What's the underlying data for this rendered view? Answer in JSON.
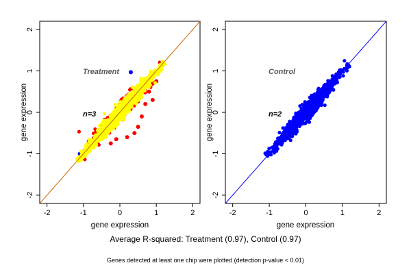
{
  "caption": "Average R-squared: Treatment (0.97), Control (0.97)",
  "footnote": "Genes detected at least one chip were plotted (detection p-value < 0.01)",
  "colors": {
    "treatment_fill": "#ffff00",
    "treatment_outlier": "#ff0000",
    "treatment_other": "#0000ff",
    "treatment_line": "#cc6600",
    "control_fill": "#0000ff",
    "control_line": "#0000ff"
  },
  "chart_data": [
    {
      "type": "scatter",
      "title": "Treatment",
      "annotation": "n=3",
      "xlabel": "gene expression",
      "ylabel": "gene expression",
      "xlim": [
        -2.2,
        2.2
      ],
      "ylim": [
        -2.2,
        2.2
      ],
      "xticks": [
        -2,
        -1,
        0,
        1,
        2
      ],
      "yticks": [
        -2,
        -1,
        0,
        1,
        2
      ],
      "grid": false,
      "reference_line": "y = x",
      "cloud": {
        "x_range": [
          -1.15,
          1.2
        ],
        "y_range": [
          -1.15,
          1.2
        ],
        "r_squared": 0.97
      },
      "series": [
        {
          "color": "#ff0000",
          "points": [
            [
              0.8,
              0.5
            ],
            [
              0.9,
              0.3
            ],
            [
              0.6,
              -0.1
            ],
            [
              0.4,
              -0.5
            ],
            [
              -0.1,
              -0.65
            ],
            [
              1.0,
              0.75
            ],
            [
              -0.25,
              -0.75
            ],
            [
              0.2,
              -0.6
            ],
            [
              0.7,
              0.2
            ],
            [
              0.5,
              -0.35
            ]
          ]
        },
        {
          "color": "#0000ff",
          "points": [
            [
              0.3,
              0.97
            ],
            [
              -0.85,
              -0.7
            ],
            [
              -1.1,
              -1.0
            ]
          ]
        },
        {
          "color": "#ffff00",
          "points": [
            [
              -1.1,
              -1.1
            ],
            [
              1.2,
              1.2
            ],
            [
              0.0,
              0.0
            ]
          ]
        }
      ]
    },
    {
      "type": "scatter",
      "title": "Control",
      "annotation": "n=2",
      "xlabel": "gene expression",
      "ylabel": "gene expression",
      "xlim": [
        -2.2,
        2.2
      ],
      "ylim": [
        -2.2,
        2.2
      ],
      "xticks": [
        -2,
        -1,
        0,
        1,
        2
      ],
      "yticks": [
        -2,
        -1,
        0,
        1,
        2
      ],
      "grid": false,
      "reference_line": "y = x",
      "cloud": {
        "x_range": [
          -1.05,
          1.15
        ],
        "y_range": [
          -1.05,
          1.15
        ],
        "r_squared": 0.97
      },
      "series": [
        {
          "color": "#0000ff",
          "points": [
            [
              -1.05,
              -1.05
            ],
            [
              1.15,
              1.15
            ],
            [
              0.0,
              0.0
            ]
          ]
        }
      ]
    }
  ]
}
